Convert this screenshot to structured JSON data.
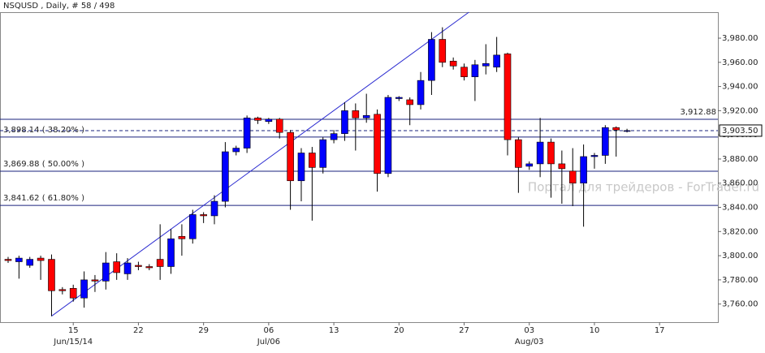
{
  "chart_data": {
    "type": "candlestick",
    "title": "NSQUSD , Daily, # 58 / 498",
    "watermark": "Портал для трейдеров - ForTrader.ru",
    "categories": [
      null,
      null,
      null,
      null,
      null,
      null,
      "15",
      null,
      null,
      null,
      null,
      null,
      "22",
      null,
      null,
      null,
      null,
      null,
      "29",
      null,
      null,
      null,
      null,
      null,
      "06",
      null,
      null,
      null,
      null,
      null,
      "13",
      null,
      null,
      null,
      null,
      null,
      "20",
      null,
      null,
      null,
      null,
      null,
      "27",
      null,
      null,
      null,
      null,
      null,
      "03",
      null,
      null,
      null,
      null,
      null,
      "10",
      null,
      null,
      null,
      null,
      null,
      "17"
    ],
    "category_sublabels": [
      null,
      null,
      null,
      null,
      null,
      null,
      "Jun/15/14",
      null,
      null,
      null,
      null,
      null,
      null,
      null,
      null,
      null,
      null,
      null,
      null,
      null,
      null,
      null,
      null,
      null,
      "Jul/06",
      null,
      null,
      null,
      null,
      null,
      null,
      null,
      null,
      null,
      null,
      null,
      null,
      null,
      null,
      null,
      null,
      null,
      null,
      null,
      null,
      null,
      null,
      null,
      "Aug/03",
      null,
      null,
      null,
      null,
      null,
      null,
      null,
      null,
      null,
      null,
      null,
      null
    ],
    "open": [
      3797,
      3795,
      3792,
      3798,
      3797,
      3772,
      3773,
      3765,
      3780,
      3779,
      3795,
      3785,
      3792,
      3791,
      3797,
      3791,
      3816,
      3814,
      3834,
      3833,
      3845,
      3886,
      3889,
      3914,
      3911,
      3913,
      3902,
      3862,
      3885,
      3873,
      3896,
      3901,
      3920,
      3914,
      3917,
      3868,
      3930,
      3929,
      3925,
      3945,
      3979,
      3961,
      3956,
      3948,
      3957,
      3956,
      3967,
      3896,
      3874,
      3876,
      3894,
      3876,
      3870,
      3860,
      3882,
      3883,
      3906,
      3903,
      null,
      null,
      null
    ],
    "high": [
      3799,
      3800,
      3799,
      3800,
      3801,
      3774,
      3776,
      3787,
      3784,
      3803,
      3802,
      3798,
      3795,
      3793,
      3826,
      3822,
      3826,
      3838,
      3836,
      3850,
      3894,
      3891,
      3916,
      3915,
      3914,
      3914,
      3904,
      3889,
      3890,
      3898,
      3904,
      3927,
      3926,
      3934,
      3921,
      3933,
      3932,
      3931,
      3952,
      3985,
      3989,
      3964,
      3959,
      3962,
      3975,
      3981,
      3968,
      3898,
      3878,
      3914,
      3897,
      3887,
      3889,
      3892,
      3885,
      3908,
      3907,
      3905,
      null,
      null,
      null
    ],
    "low": [
      3794,
      3781,
      3790,
      3780,
      3750,
      3768,
      3762,
      3757,
      3770,
      3772,
      3780,
      3780,
      3788,
      3788,
      3780,
      3785,
      3800,
      3810,
      3827,
      3826,
      3840,
      3883,
      3885,
      3909,
      3909,
      3897,
      3838,
      3845,
      3829,
      3868,
      3893,
      3895,
      3887,
      3910,
      3853,
      3865,
      3928,
      3908,
      3921,
      3933,
      3956,
      3954,
      3945,
      3928,
      3950,
      3952,
      3883,
      3852,
      3871,
      3865,
      3848,
      3843,
      3841,
      3824,
      3872,
      3876,
      3882,
      3902,
      null,
      null,
      null
    ],
    "close": [
      3796,
      3798,
      3797,
      3796,
      3771,
      3771,
      3765,
      3780,
      3779,
      3794,
      3786,
      3794,
      3791,
      3790,
      3791,
      3814,
      3814,
      3834,
      3833,
      3845,
      3886,
      3889,
      3914,
      3912,
      3913,
      3902,
      3862,
      3885,
      3873,
      3896,
      3901,
      3920,
      3914,
      3916,
      3868,
      3931,
      3931,
      3925,
      3945,
      3979,
      3960,
      3957,
      3948,
      3958,
      3959,
      3966,
      3896,
      3873,
      3876,
      3894,
      3876,
      3872,
      3860,
      3882,
      3883,
      3906,
      3904,
      3903.5,
      null,
      null,
      null
    ],
    "up_color": "#0000ff",
    "down_color": "#ff0000",
    "ylim": [
      3745,
      4001.5
    ],
    "yticks": [
      {
        "value": 3760,
        "label": "3,760.00"
      },
      {
        "value": 3780,
        "label": "3,780.00"
      },
      {
        "value": 3800,
        "label": "3,800.00"
      },
      {
        "value": 3820,
        "label": "3,820.00"
      },
      {
        "value": 3840,
        "label": "3,840.00"
      },
      {
        "value": 3860,
        "label": "3,860.00"
      },
      {
        "value": 3880,
        "label": "3,880.00"
      },
      {
        "value": 3900,
        "label": "3,900.00"
      },
      {
        "value": 3920,
        "label": "3,920.00"
      },
      {
        "value": 3940,
        "label": "3,940.00"
      },
      {
        "value": 3960,
        "label": "3,960.00"
      },
      {
        "value": 3980,
        "label": "3,980.00"
      }
    ],
    "levels": [
      {
        "value": 3912.88,
        "label": "3,912.88",
        "label_align": "right"
      },
      {
        "value": 3898.14,
        "label": "3,898.14 ( 38.20% )",
        "label_align": "left"
      },
      {
        "value": 3869.88,
        "label": "3,869.88 ( 50.00% )",
        "label_align": "left"
      },
      {
        "value": 3841.62,
        "label": "3,841.62 ( 61.80% )",
        "label_align": "left"
      }
    ],
    "level_color": "#1a237e",
    "current_price": {
      "value": 3903.5,
      "label": "3,903.50"
    },
    "trendline": {
      "x": [
        4,
        39
      ],
      "y": [
        3750,
        3979
      ],
      "color": "#2a2ad0"
    }
  }
}
